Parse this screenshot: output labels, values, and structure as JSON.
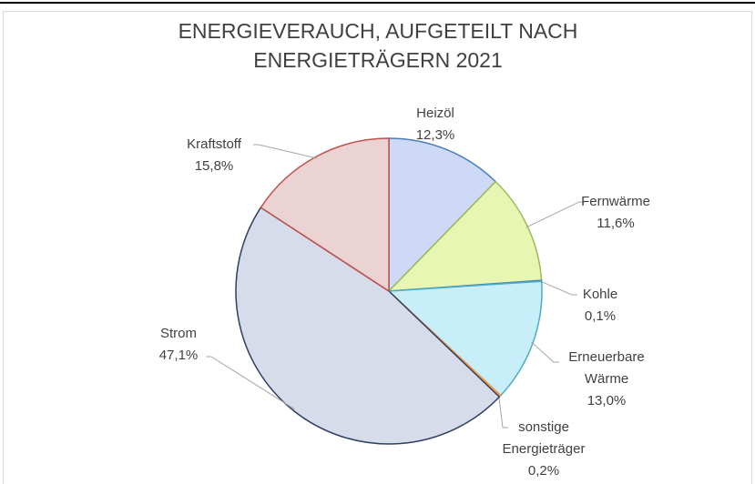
{
  "chart_data": {
    "type": "pie",
    "title": "ENERGIEVERAUCH, AUFGETEILT NACH ENERGIETRÄGERN 2021",
    "categories": [
      "Heizöl",
      "Fernwärme",
      "Kohle",
      "Erneuerbare Wärme",
      "sonstige Energieträger",
      "Strom",
      "Kraftstoff"
    ],
    "values": [
      12.3,
      11.6,
      0.1,
      13.0,
      0.2,
      47.1,
      15.8
    ],
    "value_labels": [
      "12,3%",
      "11,6%",
      "0,1%",
      "13,0%",
      "0,2%",
      "47,1%",
      "15,8%"
    ],
    "colors": [
      "#cdd9f6",
      "#e8f6b4",
      "#c9d9ef",
      "#c8eefa",
      "#f79646",
      "#d6dce9",
      "#ecd3d3"
    ],
    "border_colors": [
      "#4a7ebb",
      "#9bbb59",
      "#4a7ebb",
      "#4bacc6",
      "#f79646",
      "#2f3f63",
      "#c0504d"
    ]
  }
}
